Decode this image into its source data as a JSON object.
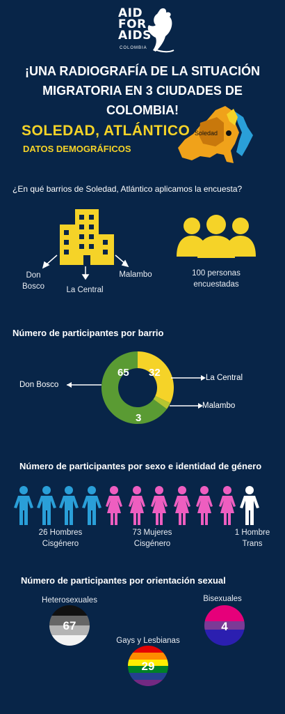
{
  "logo": {
    "line1": "AID",
    "line2": "FOR",
    "line3": "AIDS",
    "sub": "COLOMBIA"
  },
  "title": "¡UNA RADIOGRAFÍA DE LA SITUACIÓN MIGRATORIA EN 3 CIUDADES DE COLOMBIA!",
  "city": "SOLEDAD, ATLÁNTICO",
  "subtitle": "DATOS DEMOGRÁFICOS",
  "map_label": "Soledad",
  "question": "¿En qué barrios de Soledad, Atlántico aplicamos la encuesta?",
  "barrios": {
    "don_bosco": "Don Bosco",
    "la_central": "La Central",
    "malambo": "Malambo"
  },
  "persons": "100 personas encuestadas",
  "section_barrio": "Número de participantes por barrio",
  "chart_data": {
    "type": "pie",
    "categories": [
      "Don Bosco",
      "La Central",
      "Malambo"
    ],
    "values": [
      65,
      32,
      3
    ],
    "colors": [
      "#5a9b33",
      "#f5d328",
      "#b6c531"
    ]
  },
  "section_sexo": "Número de participantes por sexo e identidad de género",
  "gender": {
    "hombres": "26 Hombres Cisgénero",
    "mujeres": "73 Mujeres Cisgénero",
    "trans": "1 Hombre Trans"
  },
  "section_orientacion": "Número de participantes por orientación sexual",
  "orientation": {
    "hetero_label": "Heterosexuales",
    "hetero_value": "67",
    "bi_label": "Bisexuales",
    "bi_value": "4",
    "gay_label": "Gays y Lesbianas",
    "gay_value": "29"
  },
  "colors": {
    "background": "#082548",
    "accent": "#f5d328",
    "blue": "#2a9fd8",
    "pink": "#ee5ec0"
  }
}
